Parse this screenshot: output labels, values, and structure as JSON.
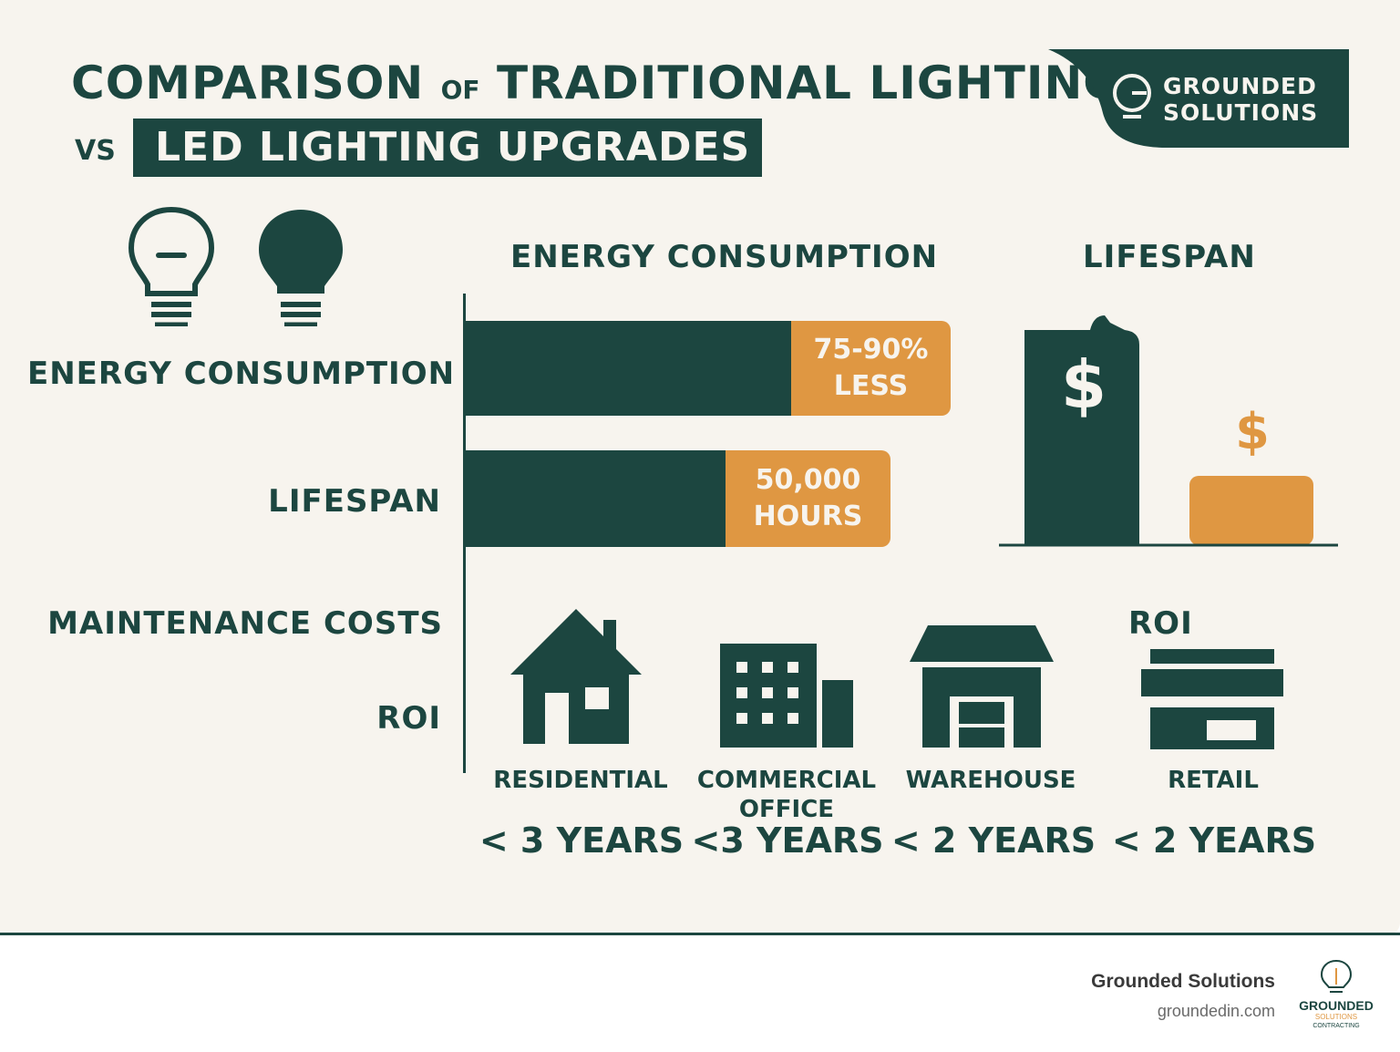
{
  "title": {
    "line1_a": "COMPARISON",
    "line1_of": "OF",
    "line1_b": "TRADITIONAL LIGHTING",
    "vs": "VS",
    "highlight": "LED LIGHTING UPGRADES"
  },
  "brand": {
    "line1": "GROUNDED",
    "line2": "SOLUTIONS"
  },
  "sections": {
    "energy_heading": "ENERGY CONSUMPTION",
    "lifespan_heading": "LIFESPAN",
    "roi_heading": "ROI"
  },
  "rows": {
    "energy": "ENERGY CONSUMPTION",
    "lifespan": "LIFESPAN",
    "maintenance": "MAINTENANCE COSTS",
    "roi": "ROI"
  },
  "bars": [
    {
      "label_line1": "75-90%",
      "label_line2": "LESS"
    },
    {
      "label_line1": "50,000",
      "label_line2": "HOURS"
    }
  ],
  "cost_icons": {
    "large_symbol": "$",
    "small_symbol": "$"
  },
  "categories": [
    {
      "name": "RESIDENTIAL",
      "roi": "< 3 YEARS",
      "icon": "house-icon"
    },
    {
      "name": "COMMERCIAL OFFICE",
      "roi": "<3 YEARS",
      "icon": "office-building-icon"
    },
    {
      "name": "WAREHOUSE",
      "roi": "< 2 YEARS",
      "icon": "warehouse-icon"
    },
    {
      "name": "RETAIL",
      "roi": "< 2 YEARS",
      "icon": "retail-store-icon"
    }
  ],
  "footer": {
    "company": "Grounded Solutions",
    "url": "groundedin.com",
    "logo_text_1": "GROUNDED",
    "logo_text_2": "SOLUTIONS",
    "logo_text_3": "CONTRACTING"
  },
  "colors": {
    "dark_green": "#1c4640",
    "orange": "#df9742",
    "background": "#f7f4ee"
  }
}
